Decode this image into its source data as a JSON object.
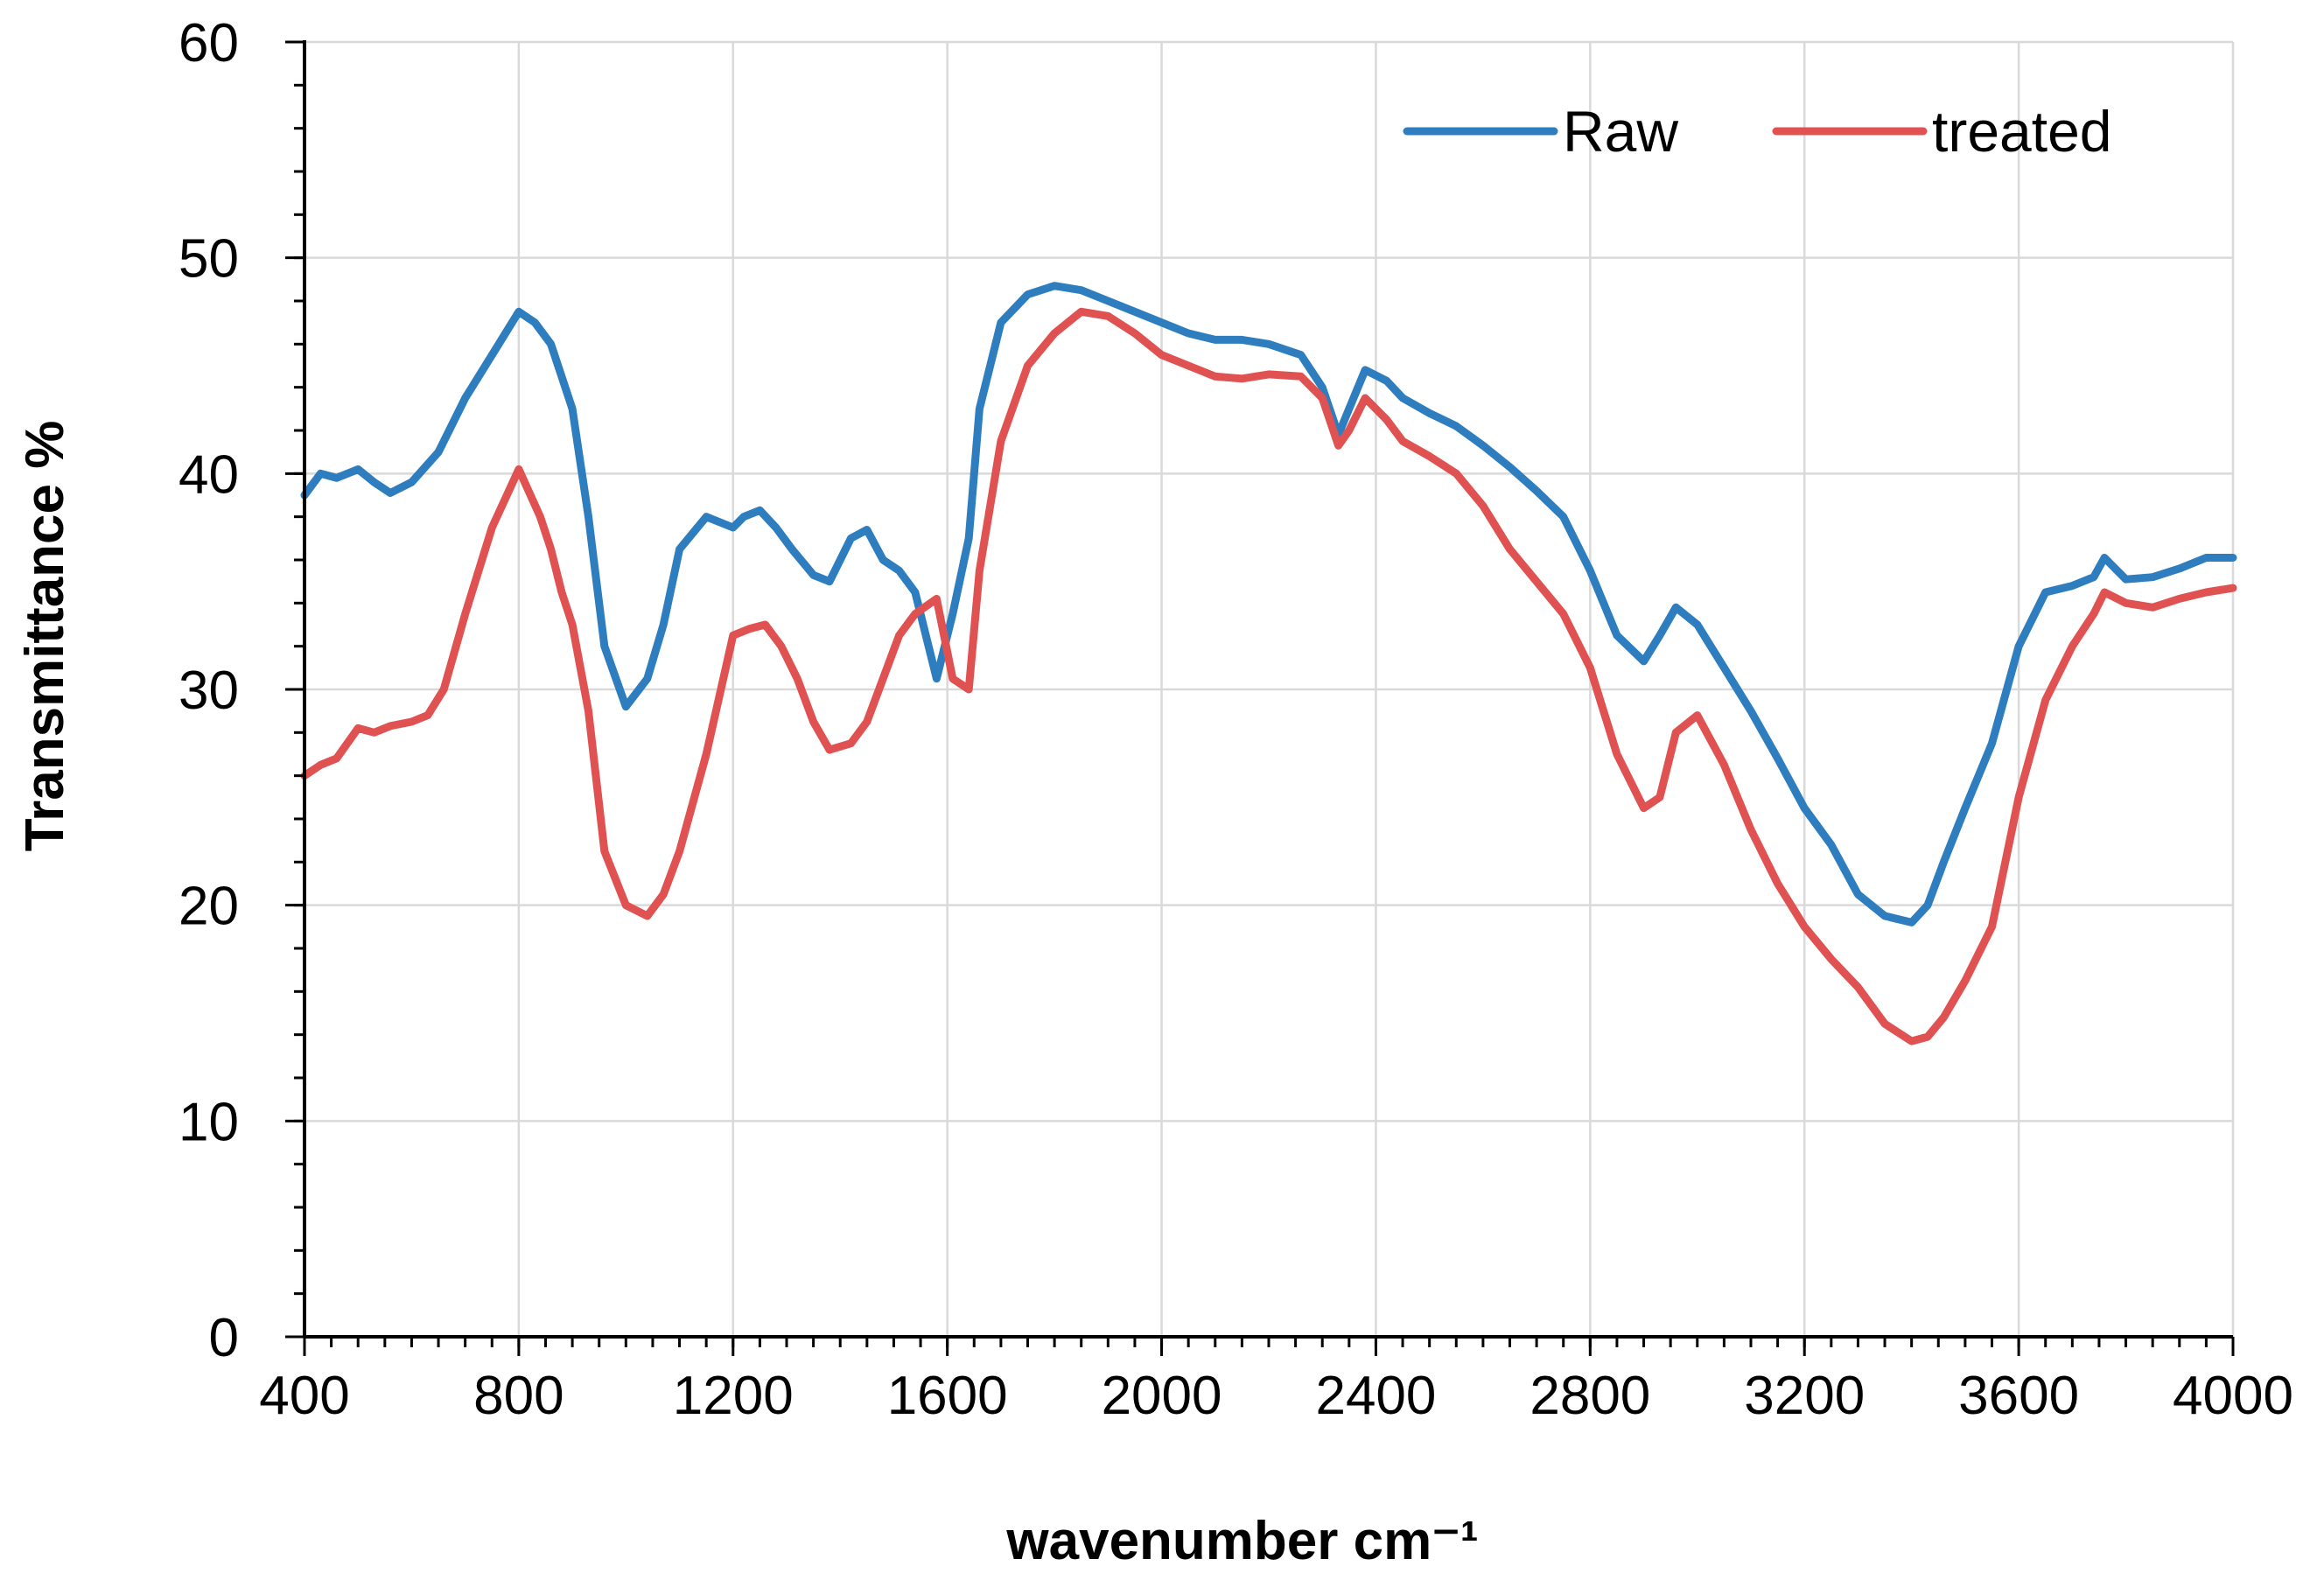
{
  "chart_data": {
    "type": "line",
    "title": "",
    "xlabel": "wavenumber cm⁻¹",
    "ylabel": "Transmittance %",
    "xlim": [
      400,
      4000
    ],
    "ylim": [
      0,
      60
    ],
    "x_ticks": [
      400,
      800,
      1200,
      1600,
      2000,
      2400,
      2800,
      3200,
      3600,
      4000
    ],
    "x_tick_labels": [
      "400",
      "800",
      "1200",
      "1600",
      "2000",
      "2400",
      "2800",
      "3200",
      "3600",
      "4000"
    ],
    "y_ticks": [
      0,
      10,
      20,
      30,
      40,
      50,
      60
    ],
    "y_tick_labels": [
      "0",
      "10",
      "20",
      "30",
      "40",
      "50",
      "60"
    ],
    "x_minor_step": 50,
    "y_minor_step": 2,
    "grid": true,
    "legend_position": "top-right",
    "series": [
      {
        "name": "Raw",
        "color": "#2e7ebf",
        "x": [
          400,
          430,
          460,
          500,
          530,
          560,
          600,
          650,
          700,
          750,
          800,
          830,
          860,
          900,
          930,
          960,
          1000,
          1040,
          1070,
          1100,
          1150,
          1200,
          1220,
          1250,
          1280,
          1310,
          1350,
          1380,
          1420,
          1450,
          1480,
          1510,
          1540,
          1580,
          1610,
          1640,
          1660,
          1700,
          1750,
          1800,
          1850,
          1900,
          1950,
          2000,
          2050,
          2100,
          2150,
          2200,
          2260,
          2300,
          2330,
          2350,
          2380,
          2420,
          2450,
          2500,
          2550,
          2600,
          2650,
          2700,
          2750,
          2800,
          2850,
          2900,
          2930,
          2960,
          3000,
          3050,
          3100,
          3150,
          3200,
          3250,
          3300,
          3350,
          3400,
          3430,
          3460,
          3500,
          3550,
          3600,
          3650,
          3700,
          3740,
          3760,
          3800,
          3850,
          3900,
          3950,
          4000
        ],
        "values": [
          39.0,
          40.0,
          39.8,
          40.2,
          39.6,
          39.1,
          39.6,
          41.0,
          43.5,
          45.5,
          47.5,
          47.0,
          46.0,
          43.0,
          38.0,
          32.0,
          29.2,
          30.5,
          33.0,
          36.5,
          38.0,
          37.5,
          38.0,
          38.3,
          37.5,
          36.5,
          35.3,
          35.0,
          37.0,
          37.4,
          36.0,
          35.5,
          34.5,
          30.5,
          33.5,
          37.0,
          43.0,
          47.0,
          48.3,
          48.7,
          48.5,
          48.0,
          47.5,
          47.0,
          46.5,
          46.2,
          46.2,
          46.0,
          45.5,
          44.0,
          41.8,
          43.0,
          44.8,
          44.3,
          43.5,
          42.8,
          42.2,
          41.3,
          40.3,
          39.2,
          38.0,
          35.5,
          32.5,
          31.3,
          32.5,
          33.8,
          33.0,
          31.0,
          29.0,
          26.8,
          24.5,
          22.8,
          20.5,
          19.5,
          19.2,
          20.0,
          22.0,
          24.5,
          27.5,
          32.0,
          34.5,
          34.8,
          35.2,
          36.1,
          35.1,
          35.2,
          35.6,
          36.1,
          36.1
        ]
      },
      {
        "name": "treated",
        "color": "#e05252",
        "x": [
          400,
          430,
          460,
          500,
          530,
          560,
          600,
          630,
          660,
          700,
          750,
          800,
          840,
          860,
          880,
          900,
          930,
          960,
          1000,
          1040,
          1070,
          1100,
          1150,
          1200,
          1230,
          1260,
          1290,
          1320,
          1350,
          1380,
          1420,
          1450,
          1480,
          1510,
          1540,
          1580,
          1610,
          1640,
          1660,
          1700,
          1750,
          1800,
          1850,
          1900,
          1950,
          2000,
          2050,
          2100,
          2150,
          2200,
          2260,
          2300,
          2330,
          2350,
          2380,
          2420,
          2450,
          2500,
          2550,
          2600,
          2650,
          2700,
          2750,
          2800,
          2850,
          2900,
          2930,
          2960,
          3000,
          3050,
          3100,
          3150,
          3200,
          3250,
          3300,
          3350,
          3400,
          3430,
          3460,
          3500,
          3550,
          3600,
          3650,
          3700,
          3740,
          3760,
          3800,
          3850,
          3900,
          3950,
          4000
        ],
        "values": [
          26.0,
          26.5,
          26.8,
          28.2,
          28.0,
          28.3,
          28.5,
          28.8,
          30.0,
          33.5,
          37.5,
          40.2,
          38.0,
          36.5,
          34.5,
          33.0,
          29.0,
          22.5,
          20.0,
          19.5,
          20.5,
          22.5,
          27.0,
          32.5,
          32.8,
          33.0,
          32.0,
          30.5,
          28.5,
          27.2,
          27.5,
          28.5,
          30.5,
          32.5,
          33.5,
          34.2,
          30.5,
          30.0,
          35.5,
          41.5,
          45.0,
          46.5,
          47.5,
          47.3,
          46.5,
          45.5,
          45.0,
          44.5,
          44.4,
          44.6,
          44.5,
          43.5,
          41.3,
          42.0,
          43.5,
          42.5,
          41.5,
          40.8,
          40.0,
          38.5,
          36.5,
          35.0,
          33.5,
          31.0,
          27.0,
          24.5,
          25.0,
          28.0,
          28.8,
          26.5,
          23.5,
          21.0,
          19.0,
          17.5,
          16.2,
          14.5,
          13.7,
          13.9,
          14.8,
          16.5,
          19.0,
          25.0,
          29.5,
          32.0,
          33.5,
          34.5,
          34.0,
          33.8,
          34.2,
          34.5,
          34.7
        ]
      }
    ]
  }
}
